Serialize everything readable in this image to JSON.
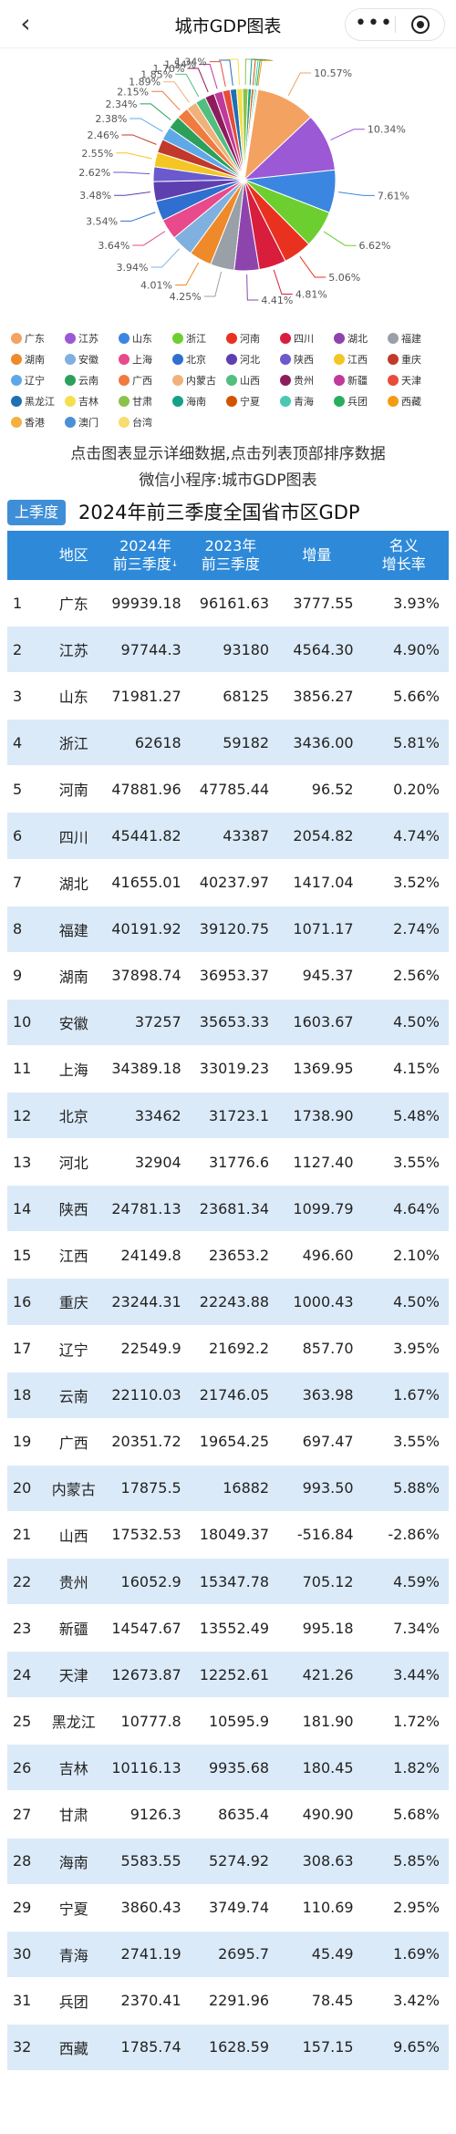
{
  "header": {
    "back_label": "‹",
    "title": "城市GDP图表",
    "more_label": "•••"
  },
  "chart_data": {
    "type": "pie",
    "title": "",
    "slices": [
      {
        "name": "广东",
        "value": 10.57,
        "color": "#f4a261"
      },
      {
        "name": "江苏",
        "value": 10.34,
        "color": "#9b59d6"
      },
      {
        "name": "山东",
        "value": 7.61,
        "color": "#3b86e0"
      },
      {
        "name": "浙江",
        "value": 6.62,
        "color": "#6ccf2f"
      },
      {
        "name": "河南",
        "value": 5.06,
        "color": "#e8321f"
      },
      {
        "name": "四川",
        "value": 4.81,
        "color": "#d81e3c"
      },
      {
        "name": "湖北",
        "value": 4.41,
        "color": "#8e44ad"
      },
      {
        "name": "福建",
        "value": 4.25,
        "color": "#9aa0a8"
      },
      {
        "name": "湖南",
        "value": 4.01,
        "color": "#ee8a2a"
      },
      {
        "name": "安徽",
        "value": 3.94,
        "color": "#7fb0e0"
      },
      {
        "name": "上海",
        "value": 3.64,
        "color": "#e84a8c"
      },
      {
        "name": "北京",
        "value": 3.54,
        "color": "#2f6fd0"
      },
      {
        "name": "河北",
        "value": 3.48,
        "color": "#5e3fb0"
      },
      {
        "name": "陕西",
        "value": 2.62,
        "color": "#6a5acd"
      },
      {
        "name": "江西",
        "value": 2.55,
        "color": "#f3c623"
      },
      {
        "name": "重庆",
        "value": 2.46,
        "color": "#c0392b"
      },
      {
        "name": "辽宁",
        "value": 2.38,
        "color": "#5fa8e8"
      },
      {
        "name": "云南",
        "value": 2.34,
        "color": "#2ca05a"
      },
      {
        "name": "广西",
        "value": 2.15,
        "color": "#f07b3f"
      },
      {
        "name": "内蒙古",
        "value": 1.89,
        "color": "#f0b27a"
      },
      {
        "name": "山西",
        "value": 1.85,
        "color": "#52be80"
      },
      {
        "name": "贵州",
        "value": 1.7,
        "color": "#8e1c5c"
      },
      {
        "name": "新疆",
        "value": 1.54,
        "color": "#c0399b"
      },
      {
        "name": "天津",
        "value": 1.34,
        "color": "#e74c3c"
      },
      {
        "name": "黑龙江",
        "value": 1.14,
        "color": "#1f6fb2"
      },
      {
        "name": "吉林",
        "value": 1.07,
        "color": "#f4e04d"
      },
      {
        "name": "甘肃",
        "value": 0.97,
        "color": "#8bc34a"
      },
      {
        "name": "海南",
        "value": 0.59,
        "color": "#16a085"
      },
      {
        "name": "宁夏",
        "value": 0.41,
        "color": "#d35400"
      },
      {
        "name": "青海",
        "value": 0.29,
        "color": "#48c9b0"
      },
      {
        "name": "兵团",
        "value": 0.25,
        "color": "#27ae60"
      },
      {
        "name": "西藏",
        "value": 0.19,
        "color": "#f39c12"
      },
      {
        "name": "香港",
        "value": 0,
        "color": "#f5b041"
      },
      {
        "name": "澳门",
        "value": 0,
        "color": "#4a90d9"
      },
      {
        "name": "台湾",
        "value": 0,
        "color": "#f7dc6f"
      }
    ],
    "labels_shown": [
      "10.57%",
      "10.34%",
      "7.61%",
      "6.62%",
      "5.06%",
      "4.81%",
      "4.41%",
      "4.25%",
      "4.01%",
      "3.94%",
      "3.64%",
      "3.54%",
      "3.48%",
      "2.62%",
      "2.55%",
      "2.46%",
      "2.38%",
      "2.34%",
      "2.15%",
      "1.89%",
      "1.85%",
      "1.70%",
      "1.54%",
      "1.34%"
    ]
  },
  "hints": {
    "line1": "点击图表显示详细数据,点击列表顶部排序数据",
    "line2": "微信小程序:城市GDP图表"
  },
  "period_button": "上季度",
  "table_title": "2024年前三季度全国省市区GDP",
  "table": {
    "headers": {
      "region": "地区",
      "y2024_line1": "2024年",
      "y2024_line2": "前三季度",
      "y2023_line1": "2023年",
      "y2023_line2": "前三季度",
      "increase": "增量",
      "growth_line1": "名义",
      "growth_line2": "增长率",
      "sort_arrow": "↓"
    },
    "rows": [
      {
        "rank": "1",
        "region": "广东",
        "y2024": "99939.18",
        "y2023": "96161.63",
        "increase": "3777.55",
        "growth": "3.93%"
      },
      {
        "rank": "2",
        "region": "江苏",
        "y2024": "97744.3",
        "y2023": "93180",
        "increase": "4564.30",
        "growth": "4.90%"
      },
      {
        "rank": "3",
        "region": "山东",
        "y2024": "71981.27",
        "y2023": "68125",
        "increase": "3856.27",
        "growth": "5.66%"
      },
      {
        "rank": "4",
        "region": "浙江",
        "y2024": "62618",
        "y2023": "59182",
        "increase": "3436.00",
        "growth": "5.81%"
      },
      {
        "rank": "5",
        "region": "河南",
        "y2024": "47881.96",
        "y2023": "47785.44",
        "increase": "96.52",
        "growth": "0.20%"
      },
      {
        "rank": "6",
        "region": "四川",
        "y2024": "45441.82",
        "y2023": "43387",
        "increase": "2054.82",
        "growth": "4.74%"
      },
      {
        "rank": "7",
        "region": "湖北",
        "y2024": "41655.01",
        "y2023": "40237.97",
        "increase": "1417.04",
        "growth": "3.52%"
      },
      {
        "rank": "8",
        "region": "福建",
        "y2024": "40191.92",
        "y2023": "39120.75",
        "increase": "1071.17",
        "growth": "2.74%"
      },
      {
        "rank": "9",
        "region": "湖南",
        "y2024": "37898.74",
        "y2023": "36953.37",
        "increase": "945.37",
        "growth": "2.56%"
      },
      {
        "rank": "10",
        "region": "安徽",
        "y2024": "37257",
        "y2023": "35653.33",
        "increase": "1603.67",
        "growth": "4.50%"
      },
      {
        "rank": "11",
        "region": "上海",
        "y2024": "34389.18",
        "y2023": "33019.23",
        "increase": "1369.95",
        "growth": "4.15%"
      },
      {
        "rank": "12",
        "region": "北京",
        "y2024": "33462",
        "y2023": "31723.1",
        "increase": "1738.90",
        "growth": "5.48%"
      },
      {
        "rank": "13",
        "region": "河北",
        "y2024": "32904",
        "y2023": "31776.6",
        "increase": "1127.40",
        "growth": "3.55%"
      },
      {
        "rank": "14",
        "region": "陕西",
        "y2024": "24781.13",
        "y2023": "23681.34",
        "increase": "1099.79",
        "growth": "4.64%"
      },
      {
        "rank": "15",
        "region": "江西",
        "y2024": "24149.8",
        "y2023": "23653.2",
        "increase": "496.60",
        "growth": "2.10%"
      },
      {
        "rank": "16",
        "region": "重庆",
        "y2024": "23244.31",
        "y2023": "22243.88",
        "increase": "1000.43",
        "growth": "4.50%"
      },
      {
        "rank": "17",
        "region": "辽宁",
        "y2024": "22549.9",
        "y2023": "21692.2",
        "increase": "857.70",
        "growth": "3.95%"
      },
      {
        "rank": "18",
        "region": "云南",
        "y2024": "22110.03",
        "y2023": "21746.05",
        "increase": "363.98",
        "growth": "1.67%"
      },
      {
        "rank": "19",
        "region": "广西",
        "y2024": "20351.72",
        "y2023": "19654.25",
        "increase": "697.47",
        "growth": "3.55%"
      },
      {
        "rank": "20",
        "region": "内蒙古",
        "y2024": "17875.5",
        "y2023": "16882",
        "increase": "993.50",
        "growth": "5.88%"
      },
      {
        "rank": "21",
        "region": "山西",
        "y2024": "17532.53",
        "y2023": "18049.37",
        "increase": "-516.84",
        "growth": "-2.86%"
      },
      {
        "rank": "22",
        "region": "贵州",
        "y2024": "16052.9",
        "y2023": "15347.78",
        "increase": "705.12",
        "growth": "4.59%"
      },
      {
        "rank": "23",
        "region": "新疆",
        "y2024": "14547.67",
        "y2023": "13552.49",
        "increase": "995.18",
        "growth": "7.34%"
      },
      {
        "rank": "24",
        "region": "天津",
        "y2024": "12673.87",
        "y2023": "12252.61",
        "increase": "421.26",
        "growth": "3.44%"
      },
      {
        "rank": "25",
        "region": "黑龙江",
        "y2024": "10777.8",
        "y2023": "10595.9",
        "increase": "181.90",
        "growth": "1.72%"
      },
      {
        "rank": "26",
        "region": "吉林",
        "y2024": "10116.13",
        "y2023": "9935.68",
        "increase": "180.45",
        "growth": "1.82%"
      },
      {
        "rank": "27",
        "region": "甘肃",
        "y2024": "9126.3",
        "y2023": "8635.4",
        "increase": "490.90",
        "growth": "5.68%"
      },
      {
        "rank": "28",
        "region": "海南",
        "y2024": "5583.55",
        "y2023": "5274.92",
        "increase": "308.63",
        "growth": "5.85%"
      },
      {
        "rank": "29",
        "region": "宁夏",
        "y2024": "3860.43",
        "y2023": "3749.74",
        "increase": "110.69",
        "growth": "2.95%"
      },
      {
        "rank": "30",
        "region": "青海",
        "y2024": "2741.19",
        "y2023": "2695.7",
        "increase": "45.49",
        "growth": "1.69%"
      },
      {
        "rank": "31",
        "region": "兵团",
        "y2024": "2370.41",
        "y2023": "2291.96",
        "increase": "78.45",
        "growth": "3.42%"
      },
      {
        "rank": "32",
        "region": "西藏",
        "y2024": "1785.74",
        "y2023": "1628.59",
        "increase": "157.15",
        "growth": "9.65%"
      }
    ]
  }
}
